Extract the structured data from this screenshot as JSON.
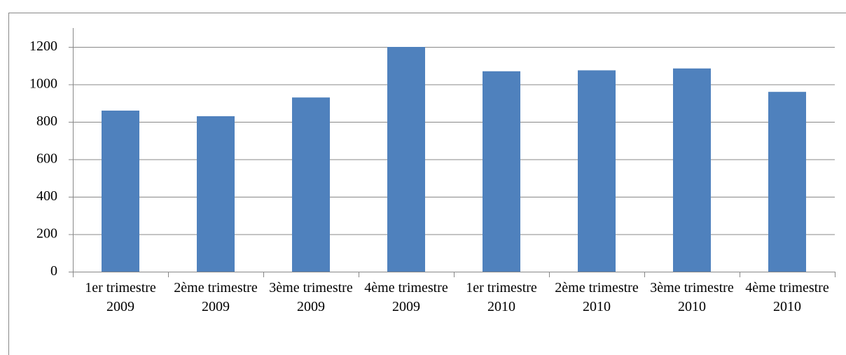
{
  "chart_data": {
    "type": "bar",
    "categories": [
      "1er trimestre 2009",
      "2ème trimestre 2009",
      "3ème trimestre 2009",
      "4ème trimestre 2009",
      "1er trimestre 2010",
      "2ème trimestre 2010",
      "3ème trimestre 2010",
      "4ème trimestre 2010"
    ],
    "values": [
      860,
      830,
      930,
      1200,
      1070,
      1075,
      1085,
      960
    ],
    "color": "#4f81bd",
    "ylim": [
      0,
      1200
    ],
    "yticks": [
      0,
      200,
      400,
      600,
      800,
      1000,
      1200
    ],
    "grid": true
  }
}
